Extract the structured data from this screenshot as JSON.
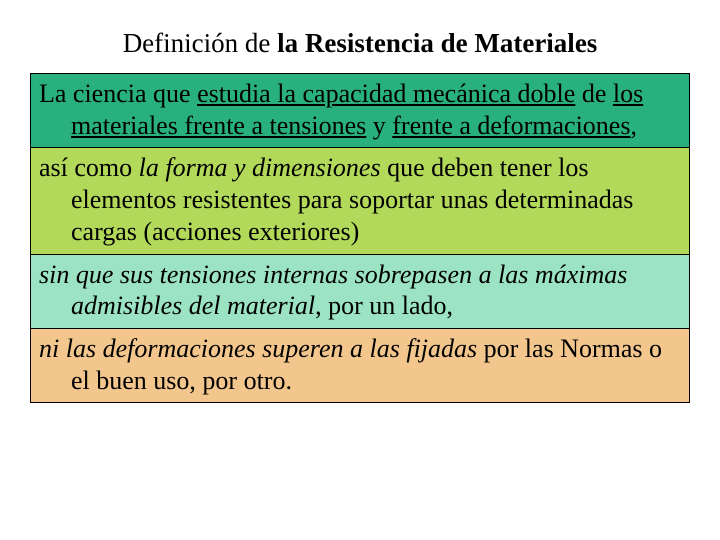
{
  "title": {
    "plain": "Definición de ",
    "bold": "la Resistencia de Materiales"
  },
  "blocks": [
    {
      "bg": "#29b07f",
      "spans": [
        {
          "text": "La ciencia que "
        },
        {
          "text": "estudia la capacidad mecánica doble",
          "u": true
        },
        {
          "text": " de "
        },
        {
          "text": "los materiales frente a tensiones",
          "u": true
        },
        {
          "text": " y "
        },
        {
          "text": "frente a deformaciones",
          "u": true
        },
        {
          "text": ","
        }
      ]
    },
    {
      "bg": "#b2d959",
      "spans": [
        {
          "text": "así como "
        },
        {
          "text": "la forma y dimensiones",
          "i": true
        },
        {
          "text": " que deben tener los elementos resistentes para soportar unas determinadas cargas (acciones exteriores)"
        }
      ]
    },
    {
      "bg": "#9be3c2",
      "spans": [
        {
          "text": "sin que sus tensiones internas sobrepasen a las máximas admisibles del material",
          "i": true
        },
        {
          "text": ", por un lado,"
        }
      ]
    },
    {
      "bg": "#f2c68c",
      "spans": [
        {
          "text": "ni las deformaciones superen a las fijadas",
          "i": true
        },
        {
          "text": " por las Normas o el buen uso, por otro."
        }
      ]
    }
  ]
}
